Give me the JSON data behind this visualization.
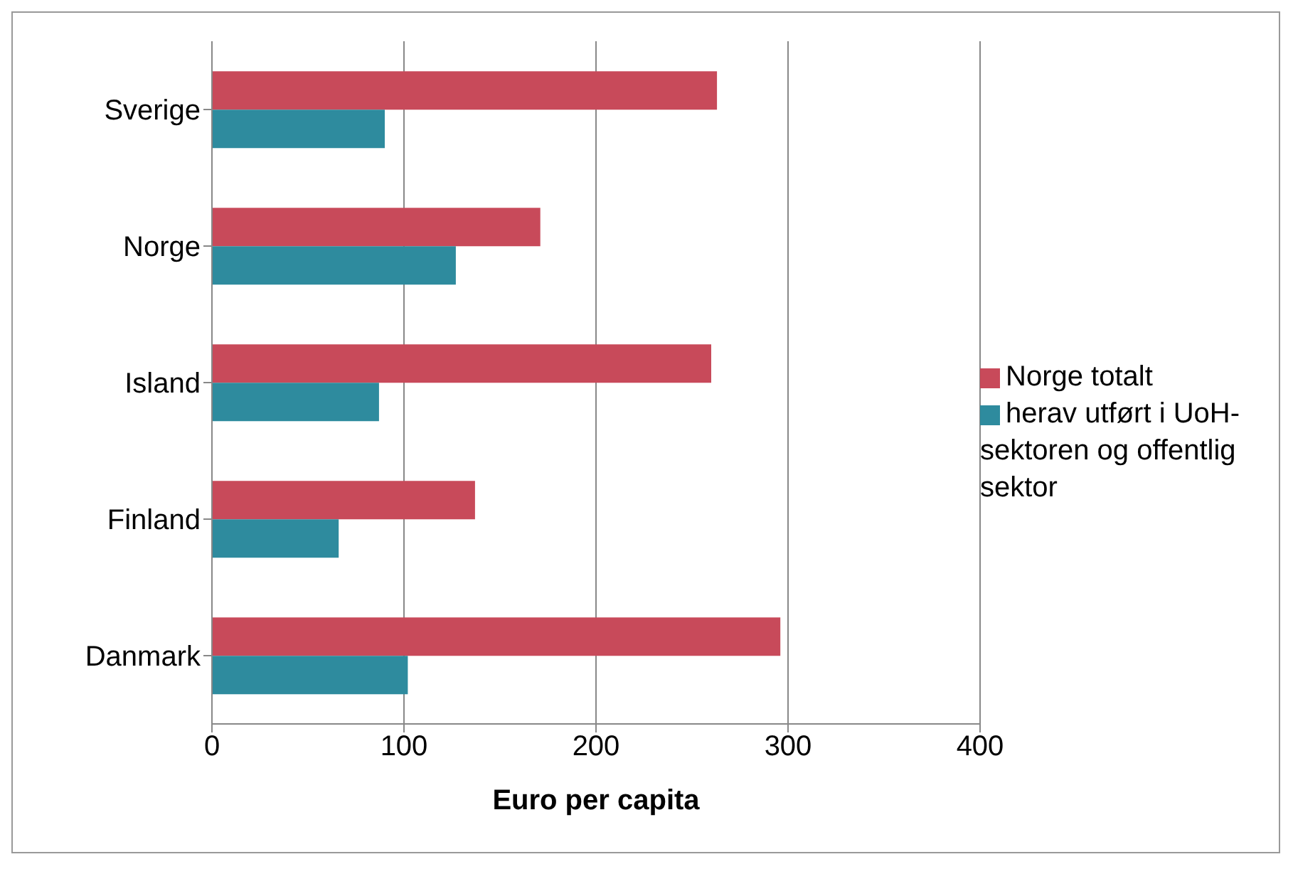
{
  "chart_data": {
    "type": "bar",
    "orientation": "horizontal",
    "xlabel": "Euro per capita",
    "categories": [
      "Sverige",
      "Norge",
      "Island",
      "Finland",
      "Danmark"
    ],
    "series": [
      {
        "name": "Norge totalt",
        "color": "#c84a5a",
        "values": [
          263,
          171,
          260,
          137,
          296
        ]
      },
      {
        "name": "herav utført i UoH-sektoren og offentlig sektor",
        "color": "#2e8b9e",
        "values": [
          90,
          127,
          87,
          66,
          102
        ]
      }
    ],
    "xlim": [
      0,
      400
    ],
    "xticks": [
      0,
      100,
      200,
      300,
      400
    ],
    "grid": "x",
    "legend": "right"
  }
}
